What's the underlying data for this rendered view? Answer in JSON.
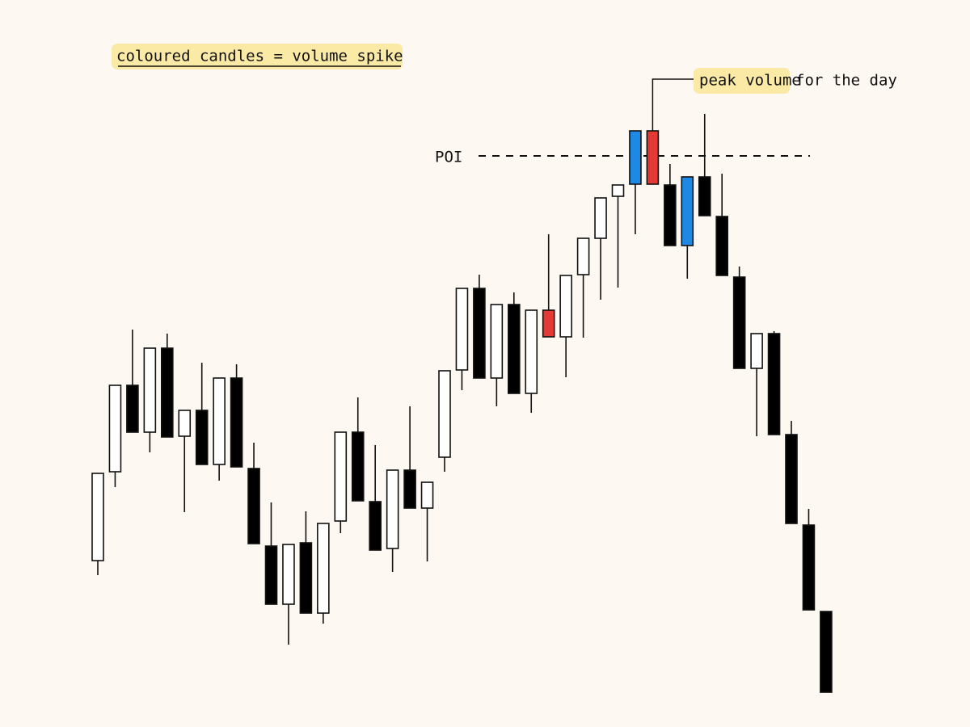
{
  "chart_data": {
    "type": "candlestick",
    "legend_note": "coloured candles = volume spike",
    "ylim": [
      0,
      900
    ],
    "open": [
      206,
      316,
      423,
      365,
      469,
      360,
      392,
      325,
      432,
      320,
      224,
      152,
      228,
      141,
      255,
      365,
      279,
      221,
      318,
      271,
      334,
      442,
      543,
      432,
      523,
      413,
      483,
      483,
      560,
      605,
      657,
      672,
      738,
      671,
      596,
      681,
      632,
      557,
      444,
      487,
      362,
      250,
      143
    ],
    "high": [
      314,
      423,
      492,
      469,
      487,
      392,
      451,
      432,
      449,
      352,
      278,
      226,
      267,
      252,
      365,
      408,
      349,
      318,
      397,
      303,
      441,
      543,
      560,
      523,
      538,
      516,
      610,
      559,
      605,
      655,
      671,
      738,
      738,
      697,
      681,
      759,
      685,
      570,
      487,
      490,
      379,
      270,
      143
    ],
    "low": [
      188,
      297,
      365,
      340,
      359,
      266,
      325,
      305,
      322,
      227,
      152,
      102,
      141,
      128,
      240,
      280,
      219,
      192,
      271,
      205,
      316,
      417,
      432,
      397,
      413,
      389,
      483,
      433,
      482,
      529,
      544,
      610,
      672,
      596,
      555,
      633,
      559,
      444,
      360,
      362,
      252,
      145,
      43
    ],
    "close": [
      314,
      423,
      365,
      469,
      359,
      392,
      325,
      432,
      322,
      227,
      152,
      226,
      141,
      252,
      365,
      280,
      219,
      318,
      271,
      303,
      441,
      543,
      432,
      523,
      413,
      516,
      516,
      559,
      605,
      655,
      671,
      738,
      672,
      596,
      681,
      633,
      559,
      444,
      487,
      362,
      252,
      145,
      43
    ],
    "colors": [
      "#ffffff",
      "#ffffff",
      "#000000",
      "#ffffff",
      "#000000",
      "#ffffff",
      "#000000",
      "#ffffff",
      "#000000",
      "#000000",
      "#000000",
      "#ffffff",
      "#000000",
      "#ffffff",
      "#ffffff",
      "#000000",
      "#000000",
      "#ffffff",
      "#000000",
      "#ffffff",
      "#ffffff",
      "#ffffff",
      "#000000",
      "#ffffff",
      "#000000",
      "#ffffff",
      "#e53935",
      "#ffffff",
      "#ffffff",
      "#ffffff",
      "#ffffff",
      "#1e88e5",
      "#e53935",
      "#000000",
      "#1e88e5",
      "#000000",
      "#000000",
      "#000000",
      "#ffffff",
      "#000000",
      "#000000",
      "#000000",
      "#000000"
    ],
    "poi": {
      "label": "POI",
      "value": 707
    },
    "peak_annotation": {
      "highlight": "peak volume",
      "text": "for the day",
      "candle": 32
    }
  }
}
